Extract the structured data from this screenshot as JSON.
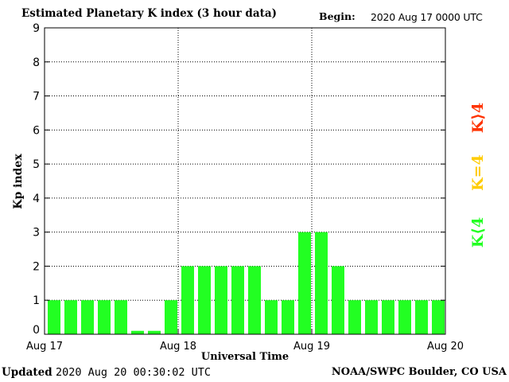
{
  "header": {
    "title": "Estimated Planetary K index (3 hour data)",
    "begin_label": "Begin:",
    "begin_value": "2020 Aug 17 0000 UTC"
  },
  "footer": {
    "updated_label": "Updated",
    "updated_value": "2020 Aug 20 00:30:02 UTC",
    "credit": "NOAA/SWPC Boulder, CO USA"
  },
  "legend": [
    {
      "label": "K⟨4",
      "color": "#22ff22"
    },
    {
      "label": "K=4",
      "color": "#ffcc00"
    },
    {
      "label": "K⟩4",
      "color": "#ff3300"
    }
  ],
  "chart_data": {
    "type": "bar",
    "title": "Estimated Planetary K index (3 hour data)",
    "xlabel": "Universal Time",
    "ylabel": "Kp index",
    "ylim": [
      0,
      9
    ],
    "yticks": [
      "0",
      "1",
      "2",
      "3",
      "4",
      "5",
      "6",
      "7",
      "8",
      "9"
    ],
    "xticks": [
      "Aug 17",
      "Aug 18",
      "Aug 19",
      "Aug 20"
    ],
    "grid": true,
    "bar_color": "#22ff22",
    "categories": [
      "Aug 17 00",
      "Aug 17 03",
      "Aug 17 06",
      "Aug 17 09",
      "Aug 17 12",
      "Aug 17 15",
      "Aug 17 18",
      "Aug 17 21",
      "Aug 18 00",
      "Aug 18 03",
      "Aug 18 06",
      "Aug 18 09",
      "Aug 18 12",
      "Aug 18 15",
      "Aug 18 18",
      "Aug 18 21",
      "Aug 19 00",
      "Aug 19 03",
      "Aug 19 06",
      "Aug 19 09",
      "Aug 19 12",
      "Aug 19 15",
      "Aug 19 18",
      "Aug 19 21"
    ],
    "values": [
      1,
      1,
      1,
      1,
      1,
      0.1,
      0.1,
      1,
      2,
      2,
      2,
      2,
      2,
      1,
      1,
      3,
      3,
      2,
      1,
      1,
      1,
      1,
      1,
      1
    ]
  }
}
